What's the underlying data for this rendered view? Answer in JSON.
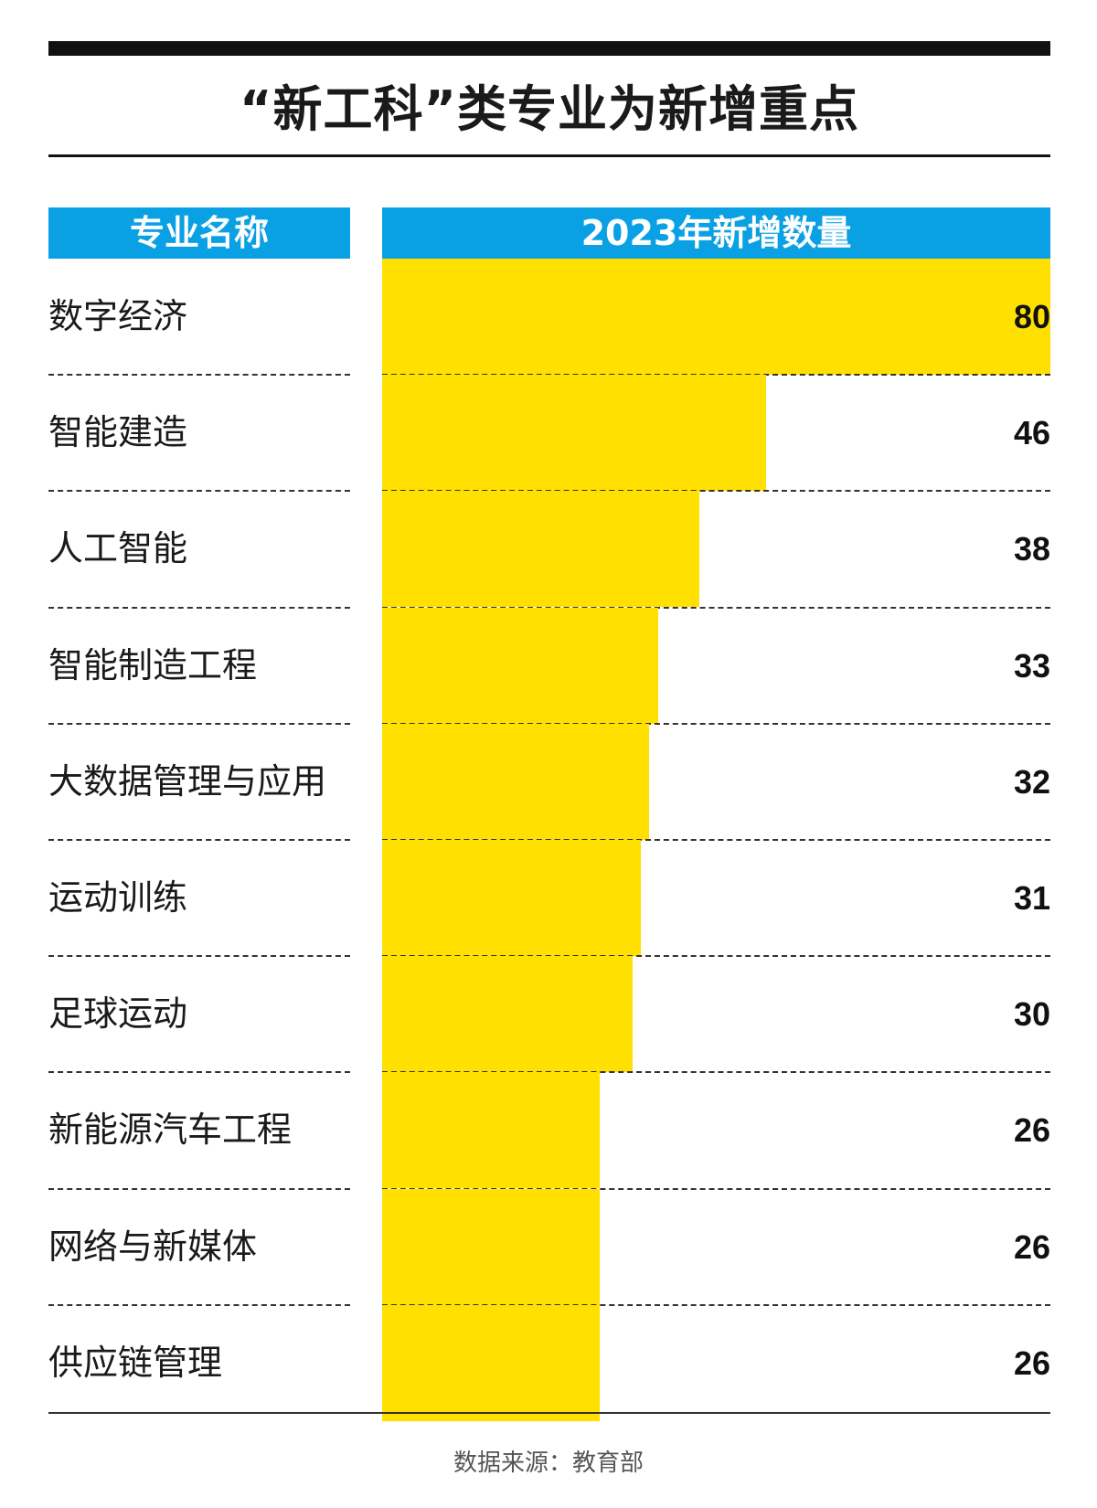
{
  "title": "“新工科”类专业为新增重点",
  "source": "数据来源：教育部",
  "colors": {
    "header": "#0aa0e4",
    "bar": "#ffe000",
    "rule": "#111111"
  },
  "chart_data": {
    "type": "bar",
    "orientation": "horizontal",
    "title": "“新工科”类专业为新增重点",
    "category_header": "专业名称",
    "value_header": "2023年新增数量",
    "categories": [
      "数字经济",
      "智能建造",
      "人工智能",
      "智能制造工程",
      "大数据管理与应用",
      "运动训练",
      "足球运动",
      "新能源汽车工程",
      "网络与新媒体",
      "供应链管理"
    ],
    "values": [
      80,
      46,
      38,
      33,
      32,
      31,
      30,
      26,
      26,
      26
    ],
    "xlim": [
      0,
      80
    ],
    "grid": false,
    "legend": "none"
  }
}
